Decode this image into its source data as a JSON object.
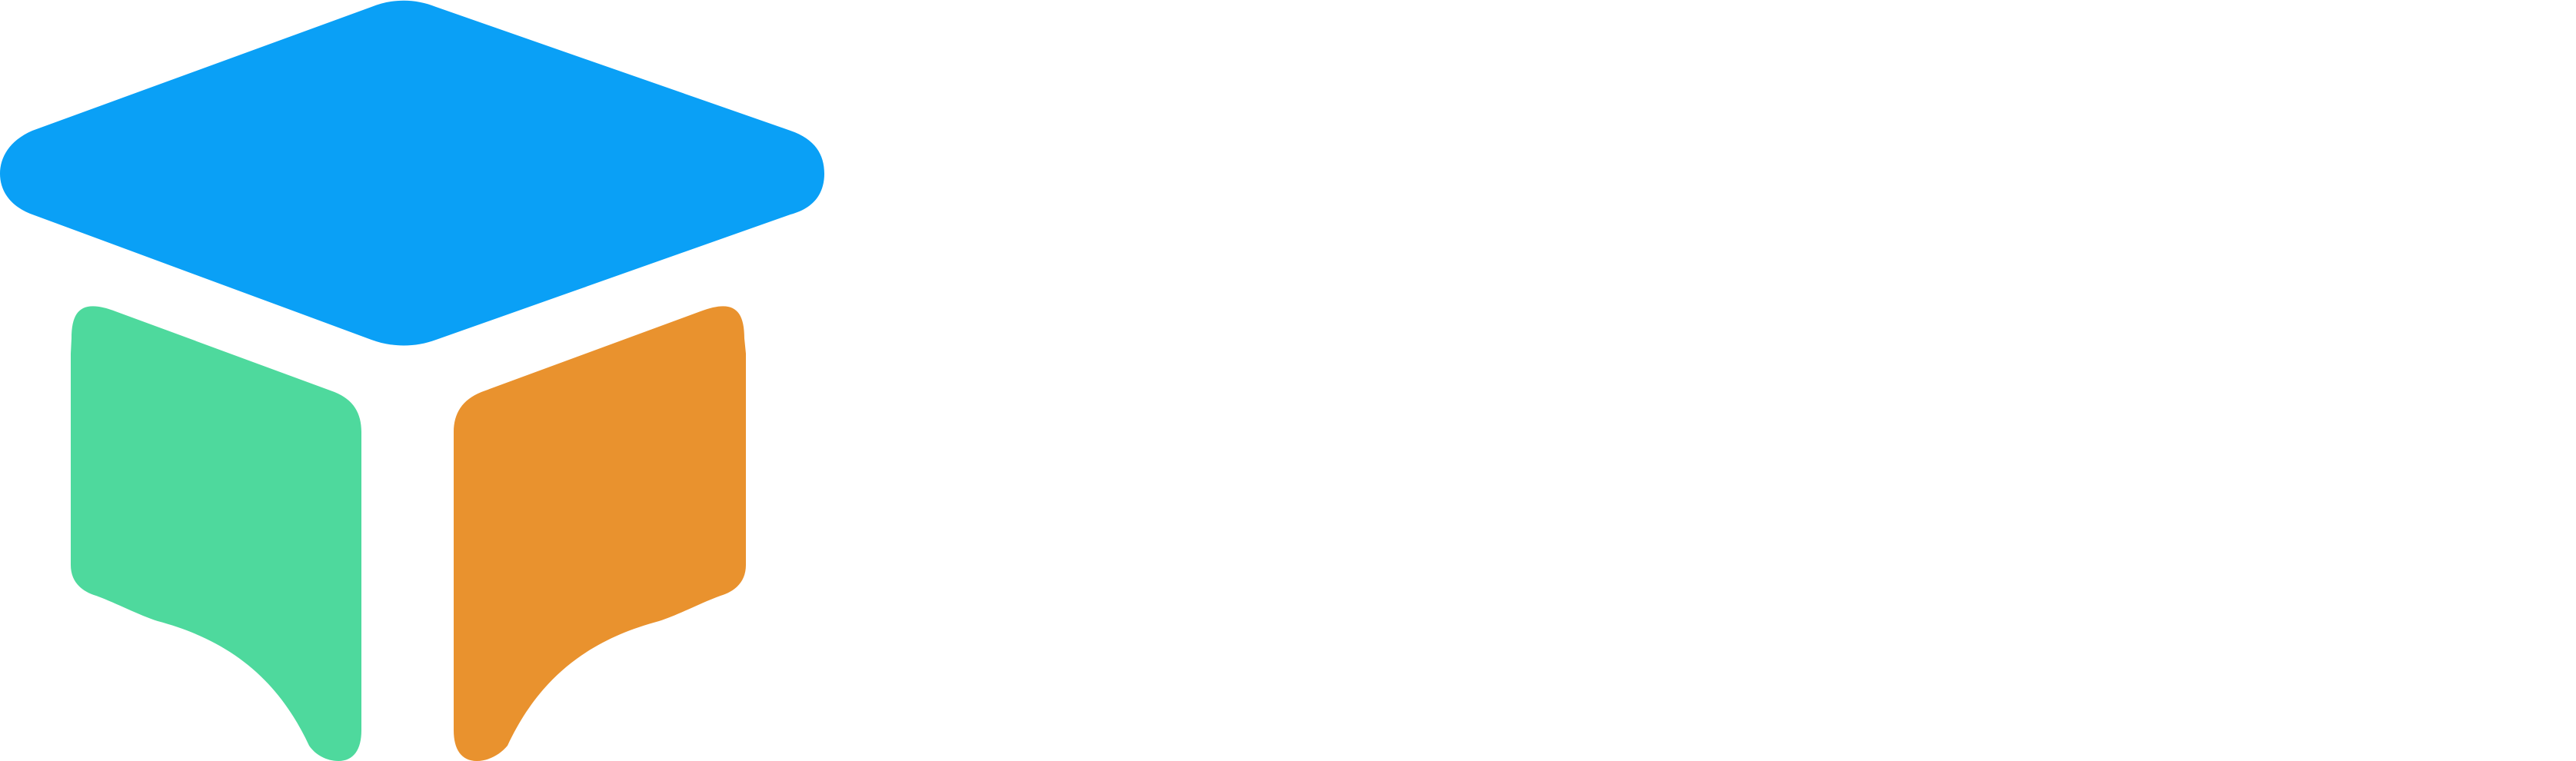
{
  "logo": {
    "icon_name": "open-book-graduation-cap-icon",
    "colors": {
      "cap": "#0AA0F6",
      "left_page": "#4ED99D",
      "right_page": "#E9922E",
      "background": "#FFFFFF"
    }
  }
}
